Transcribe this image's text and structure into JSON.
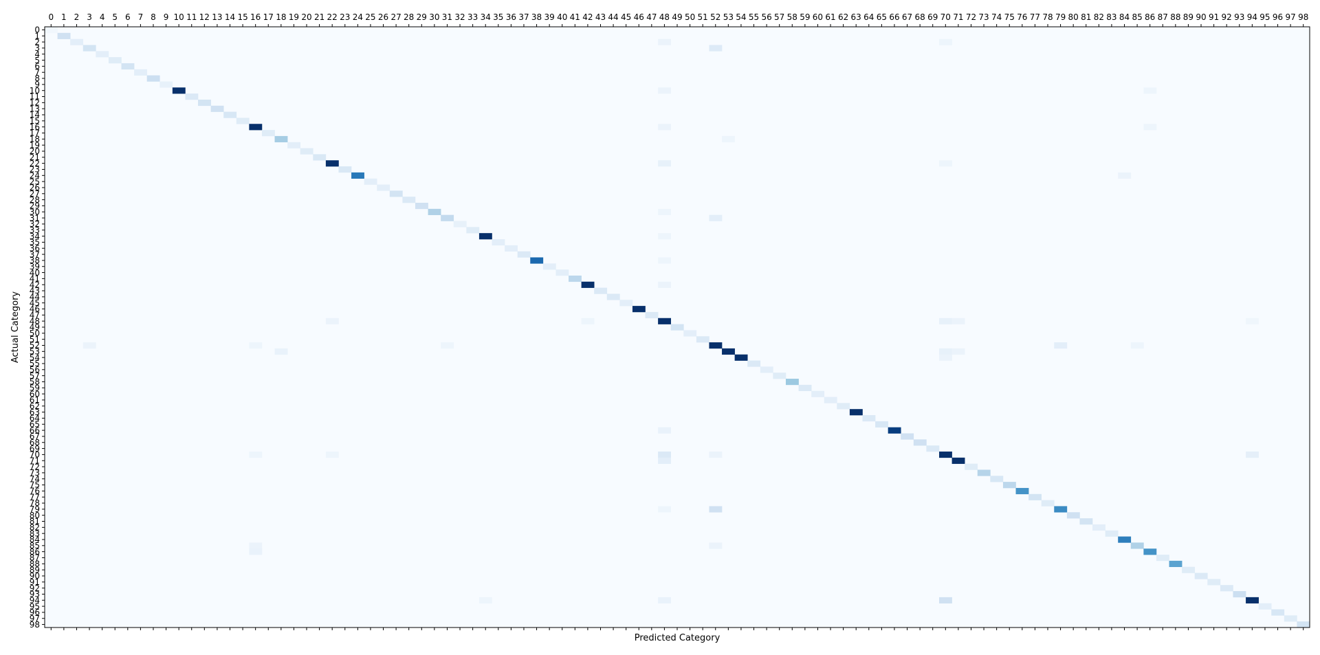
{
  "chart_data": {
    "type": "heatmap",
    "title": "",
    "xlabel": "Predicted Category",
    "ylabel": "Actual Category",
    "xtick_position": "top",
    "colormap": "Blues",
    "grid": false,
    "legend": "none",
    "x_categories": [
      "0",
      "1",
      "2",
      "3",
      "4",
      "5",
      "6",
      "7",
      "8",
      "9",
      "10",
      "11",
      "12",
      "13",
      "14",
      "15",
      "16",
      "17",
      "18",
      "19",
      "20",
      "21",
      "22",
      "23",
      "24",
      "25",
      "26",
      "27",
      "28",
      "29",
      "30",
      "31",
      "32",
      "33",
      "34",
      "35",
      "36",
      "37",
      "38",
      "39",
      "40",
      "41",
      "42",
      "43",
      "44",
      "45",
      "46",
      "47",
      "48",
      "49",
      "50",
      "51",
      "52",
      "53",
      "54",
      "55",
      "56",
      "57",
      "58",
      "59",
      "60",
      "61",
      "62",
      "63",
      "64",
      "65",
      "66",
      "67",
      "68",
      "69",
      "70",
      "71",
      "72",
      "73",
      "74",
      "75",
      "76",
      "77",
      "78",
      "79",
      "80",
      "81",
      "82",
      "83",
      "84",
      "85",
      "86",
      "87",
      "88",
      "89",
      "90",
      "91",
      "92",
      "93",
      "94",
      "95",
      "96",
      "97",
      "98"
    ],
    "y_categories": [
      "0",
      "1",
      "2",
      "3",
      "4",
      "5",
      "6",
      "7",
      "8",
      "9",
      "10",
      "11",
      "12",
      "13",
      "14",
      "15",
      "16",
      "17",
      "18",
      "19",
      "20",
      "21",
      "22",
      "23",
      "24",
      "25",
      "26",
      "27",
      "28",
      "29",
      "30",
      "31",
      "32",
      "33",
      "34",
      "35",
      "36",
      "37",
      "38",
      "39",
      "40",
      "41",
      "42",
      "43",
      "44",
      "45",
      "46",
      "47",
      "48",
      "49",
      "50",
      "51",
      "52",
      "53",
      "54",
      "55",
      "56",
      "57",
      "58",
      "59",
      "60",
      "61",
      "62",
      "63",
      "64",
      "65",
      "66",
      "67",
      "68",
      "69",
      "70",
      "71",
      "72",
      "73",
      "74",
      "75",
      "76",
      "77",
      "78",
      "79",
      "80",
      "81",
      "82",
      "83",
      "84",
      "85",
      "86",
      "87",
      "88",
      "89",
      "90",
      "91",
      "92",
      "93",
      "94",
      "95",
      "96",
      "97",
      "98"
    ],
    "diagonal": [
      0.03,
      0.2,
      0.1,
      0.18,
      0.1,
      0.12,
      0.18,
      0.1,
      0.22,
      0.08,
      1.0,
      0.14,
      0.18,
      0.2,
      0.16,
      0.12,
      1.0,
      0.12,
      0.35,
      0.1,
      0.12,
      0.15,
      1.0,
      0.15,
      0.72,
      0.1,
      0.1,
      0.18,
      0.14,
      0.2,
      0.32,
      0.26,
      0.08,
      0.12,
      1.0,
      0.1,
      0.1,
      0.14,
      0.78,
      0.1,
      0.1,
      0.28,
      1.0,
      0.14,
      0.14,
      0.1,
      1.0,
      0.14,
      1.0,
      0.18,
      0.1,
      0.14,
      1.0,
      1.0,
      1.0,
      0.14,
      0.1,
      0.12,
      0.38,
      0.14,
      0.1,
      0.1,
      0.12,
      1.0,
      0.14,
      0.16,
      0.95,
      0.2,
      0.2,
      0.14,
      1.0,
      1.0,
      0.12,
      0.3,
      0.16,
      0.28,
      0.62,
      0.18,
      0.12,
      0.65,
      0.2,
      0.18,
      0.1,
      0.12,
      0.7,
      0.32,
      0.62,
      0.12,
      0.55,
      0.12,
      0.14,
      0.12,
      0.14,
      0.22,
      1.0,
      0.1,
      0.16,
      0.12,
      0.18
    ],
    "off_diagonal": [
      [
        2,
        48,
        0.06
      ],
      [
        2,
        70,
        0.05
      ],
      [
        3,
        52,
        0.13
      ],
      [
        10,
        48,
        0.06
      ],
      [
        10,
        86,
        0.05
      ],
      [
        16,
        48,
        0.06
      ],
      [
        16,
        86,
        0.05
      ],
      [
        18,
        53,
        0.05
      ],
      [
        22,
        48,
        0.08
      ],
      [
        22,
        70,
        0.05
      ],
      [
        24,
        84,
        0.06
      ],
      [
        30,
        48,
        0.05
      ],
      [
        31,
        52,
        0.1
      ],
      [
        34,
        48,
        0.05
      ],
      [
        38,
        48,
        0.05
      ],
      [
        42,
        48,
        0.06
      ],
      [
        48,
        22,
        0.06
      ],
      [
        48,
        42,
        0.05
      ],
      [
        48,
        70,
        0.08
      ],
      [
        48,
        71,
        0.06
      ],
      [
        48,
        94,
        0.04
      ],
      [
        52,
        3,
        0.06
      ],
      [
        52,
        16,
        0.05
      ],
      [
        52,
        31,
        0.05
      ],
      [
        52,
        79,
        0.1
      ],
      [
        52,
        85,
        0.05
      ],
      [
        53,
        18,
        0.07
      ],
      [
        53,
        70,
        0.08
      ],
      [
        53,
        71,
        0.06
      ],
      [
        54,
        70,
        0.06
      ],
      [
        66,
        48,
        0.07
      ],
      [
        70,
        48,
        0.14
      ],
      [
        70,
        16,
        0.05
      ],
      [
        70,
        22,
        0.05
      ],
      [
        70,
        52,
        0.06
      ],
      [
        70,
        94,
        0.09
      ],
      [
        71,
        48,
        0.1
      ],
      [
        79,
        52,
        0.2
      ],
      [
        79,
        48,
        0.05
      ],
      [
        85,
        16,
        0.06
      ],
      [
        85,
        52,
        0.06
      ],
      [
        86,
        16,
        0.07
      ],
      [
        94,
        48,
        0.07
      ],
      [
        94,
        70,
        0.2
      ],
      [
        94,
        34,
        0.05
      ]
    ]
  }
}
